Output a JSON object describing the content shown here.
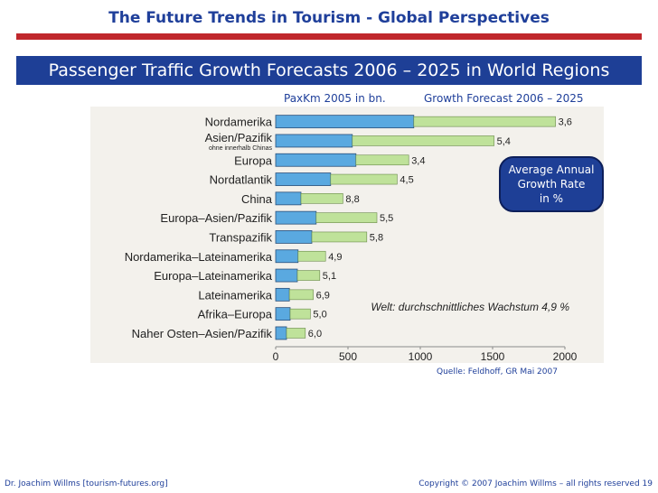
{
  "slide": {
    "title": "The Future Trends in Tourism - Global Perspectives",
    "subtitle": "Passenger Traffic Growth Forecasts 2006 – 2025 in World Regions",
    "col_header_left": "PaxKm 2005 in bn.",
    "col_header_right": "Growth Forecast 2006 – 2025",
    "callout": [
      "Average Annual",
      "Growth Rate",
      "in %"
    ],
    "source": "Quelle: Feldhoff, GR Mai 2007",
    "footer_left": "Dr. Joachim Willms [tourism-futures.org]",
    "footer_right": "Copyright © 2007 Joachim Willms – all rights reserved  19"
  },
  "colors": {
    "base_bar": "#5aa9e0",
    "forecast_bar": "#bfe29a",
    "title_blue": "#1f3f9a",
    "rule_red": "#c0282d"
  },
  "chart_data": {
    "type": "bar",
    "orientation": "horizontal",
    "stacked": true,
    "categories": [
      "Nordamerika",
      "Asien/Pazifik",
      "Europa",
      "Nordatlantik",
      "China",
      "Europa–Asien/Pazifik",
      "Transpazifik",
      "Nordamerika–Lateinamerika",
      "Europa–Lateinamerika",
      "Lateinamerika",
      "Afrika–Europa",
      "Naher Osten–Asien/Pazifik"
    ],
    "category_note": {
      "Asien/Pazifik": "ohne innerhalb Chinas"
    },
    "series": [
      {
        "name": "PaxKm 2005 in bn.",
        "values": [
          955,
          530,
          555,
          380,
          175,
          280,
          250,
          155,
          150,
          95,
          100,
          75
        ]
      },
      {
        "name": "Growth Forecast 2006 – 2025",
        "values": [
          980,
          980,
          365,
          460,
          290,
          420,
          380,
          190,
          155,
          165,
          140,
          130
        ]
      }
    ],
    "growth_rate_labels": [
      "3,6",
      "5,4",
      "3,4",
      "4,5",
      "8,8",
      "5,5",
      "5,8",
      "4,9",
      "5,1",
      "6,9",
      "5,0",
      "6,0"
    ],
    "xlim": [
      0,
      2000
    ],
    "xticks": [
      0,
      500,
      1000,
      1500,
      2000
    ],
    "xtick_labels": [
      "0",
      "500",
      "1000",
      "1500",
      "2000"
    ],
    "annotation": "Welt: durchschnittliches Wachstum 4,9 %"
  }
}
